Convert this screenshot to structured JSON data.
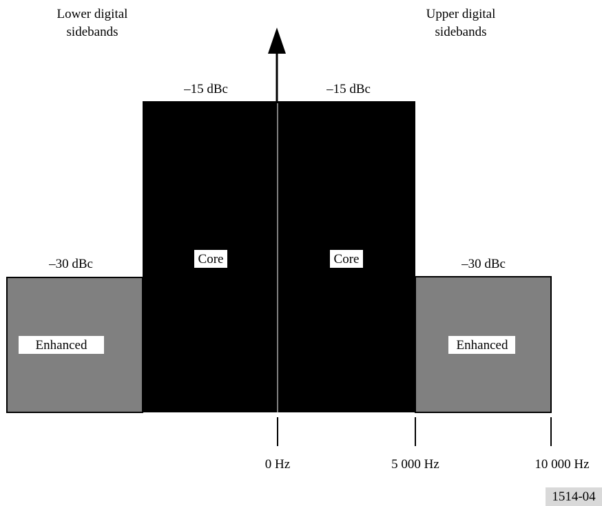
{
  "labels": {
    "lower_sidebands_line1": "Lower digital",
    "lower_sidebands_line2": "sidebands",
    "upper_sidebands_line1": "Upper digital",
    "upper_sidebands_line2": "sidebands",
    "core_level_left": "–15 dBc",
    "core_level_right": "–15 dBc",
    "enhanced_level_left": "–30 dBc",
    "enhanced_level_right": "–30 dBc",
    "core_left": "Core",
    "core_right": "Core",
    "enhanced_left": "Enhanced",
    "enhanced_right": "Enhanced",
    "freq_0": "0 Hz",
    "freq_5000": "5 000 Hz",
    "freq_10000": "10 000 Hz",
    "figure_id": "1514-04"
  },
  "colors": {
    "core_fill": "#000000",
    "enhanced_fill": "#808080",
    "background": "#ffffff",
    "figure_id_bg": "#d9d9d9"
  }
}
